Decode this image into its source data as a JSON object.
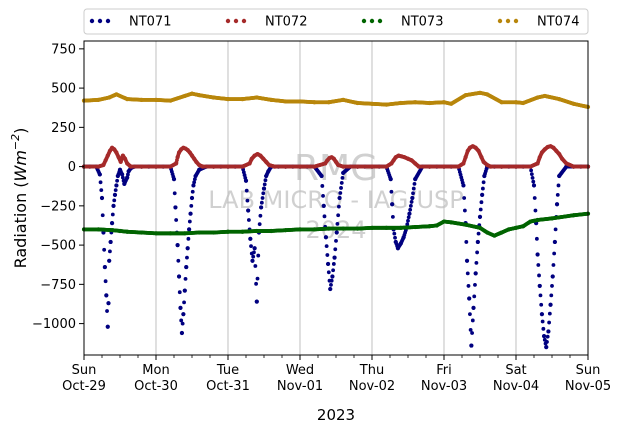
{
  "chart_data": {
    "type": "scatter",
    "title": "",
    "xlabel": "2023",
    "ylabel_prefix": "Radiation (",
    "ylabel_unit_main": "Wm",
    "ylabel_unit_exp": "−2",
    "ylabel_suffix": ")",
    "xlim": [
      0,
      7
    ],
    "ylim": [
      -1200,
      800
    ],
    "grid": "vertical",
    "legend_placement": "top",
    "yticks": [
      {
        "value": 750,
        "label": "750"
      },
      {
        "value": 500,
        "label": "500"
      },
      {
        "value": 250,
        "label": "250"
      },
      {
        "value": 0,
        "label": "0"
      },
      {
        "value": -250,
        "label": "−250"
      },
      {
        "value": -500,
        "label": "−500"
      },
      {
        "value": -750,
        "label": "−750"
      },
      {
        "value": -1000,
        "label": "−1000"
      }
    ],
    "xticks": [
      {
        "value": 0,
        "day": "Sun",
        "date": "Oct-29"
      },
      {
        "value": 1,
        "day": "Mon",
        "date": "Oct-30"
      },
      {
        "value": 2,
        "day": "Tue",
        "date": "Oct-31"
      },
      {
        "value": 3,
        "day": "Wed",
        "date": "Nov-01"
      },
      {
        "value": 4,
        "day": "Thu",
        "date": "Nov-02"
      },
      {
        "value": 5,
        "day": "Fri",
        "date": "Nov-03"
      },
      {
        "value": 6,
        "day": "Sat",
        "date": "Nov-04"
      },
      {
        "value": 7,
        "day": "Sun",
        "date": "Nov-05"
      }
    ],
    "watermark": [
      "RMG",
      "LAB MICRO - IAG/USP",
      "2024"
    ],
    "series": [
      {
        "name": "NT071",
        "color": "#000080",
        "x": [
          0.0,
          0.08,
          0.17,
          0.22,
          0.25,
          0.27,
          0.29,
          0.31,
          0.33,
          0.34,
          0.35,
          0.37,
          0.39,
          0.41,
          0.43,
          0.45,
          0.47,
          0.5,
          0.53,
          0.56,
          0.6,
          0.62,
          0.65,
          0.7,
          0.8,
          0.9,
          1.0,
          1.1,
          1.2,
          1.25,
          1.27,
          1.3,
          1.32,
          1.34,
          1.36,
          1.38,
          1.4,
          1.42,
          1.44,
          1.46,
          1.48,
          1.5,
          1.52,
          1.55,
          1.6,
          1.7,
          1.8,
          1.9,
          2.0,
          2.1,
          2.2,
          2.25,
          2.28,
          2.31,
          2.34,
          2.37,
          2.4,
          2.43,
          2.46,
          2.5,
          2.53,
          2.56,
          2.6,
          2.7,
          2.8,
          2.9,
          3.0,
          3.1,
          3.2,
          3.3,
          3.33,
          3.36,
          3.39,
          3.42,
          3.45,
          3.48,
          3.51,
          3.55,
          3.6,
          3.7,
          3.8,
          3.9,
          4.0,
          4.1,
          4.2,
          4.26,
          4.28,
          4.3,
          4.33,
          4.36,
          4.4,
          4.44,
          4.48,
          4.52,
          4.56,
          4.6,
          4.7,
          4.8,
          4.9,
          5.0,
          5.1,
          5.2,
          5.27,
          5.3,
          5.32,
          5.35,
          5.38,
          5.41,
          5.44,
          5.47,
          5.5,
          5.53,
          5.56,
          5.6,
          5.7,
          5.8,
          5.9,
          6.0,
          6.1,
          6.2,
          6.25,
          6.28,
          6.3,
          6.33,
          6.36,
          6.39,
          6.42,
          6.45,
          6.48,
          6.51,
          6.54,
          6.57,
          6.6,
          6.7,
          6.8,
          6.9,
          7.0
        ],
        "y": [
          0,
          0,
          0,
          -50,
          -200,
          -420,
          -640,
          -820,
          -1020,
          -870,
          -600,
          -480,
          -360,
          -250,
          -180,
          -120,
          -60,
          -20,
          -50,
          -110,
          -70,
          -30,
          -10,
          0,
          0,
          0,
          0,
          0,
          0,
          -80,
          -260,
          -500,
          -700,
          -900,
          -1060,
          -940,
          -790,
          -640,
          -520,
          -400,
          -300,
          -200,
          -120,
          -60,
          -20,
          0,
          0,
          0,
          0,
          0,
          0,
          -90,
          -280,
          -460,
          -600,
          -520,
          -860,
          -420,
          -260,
          -140,
          -60,
          -30,
          0,
          0,
          0,
          0,
          0,
          0,
          0,
          -60,
          -250,
          -450,
          -620,
          -780,
          -700,
          -580,
          -420,
          -200,
          -40,
          0,
          0,
          0,
          0,
          0,
          0,
          -80,
          -240,
          -400,
          -480,
          -520,
          -490,
          -450,
          -390,
          -300,
          -200,
          -80,
          0,
          0,
          0,
          0,
          0,
          0,
          -120,
          -360,
          -600,
          -840,
          -1140,
          -900,
          -680,
          -480,
          -320,
          -180,
          -60,
          0,
          0,
          0,
          0,
          0,
          0,
          0,
          -120,
          -360,
          -560,
          -760,
          -940,
          -1080,
          -1150,
          -1050,
          -880,
          -700,
          -480,
          -240,
          -60,
          0,
          0,
          0,
          0
        ]
      },
      {
        "name": "NT072",
        "color": "#a52a2a",
        "x": [
          0.0,
          0.2,
          0.27,
          0.3,
          0.33,
          0.36,
          0.39,
          0.42,
          0.45,
          0.48,
          0.51,
          0.54,
          0.57,
          0.6,
          0.65,
          0.8,
          1.0,
          1.2,
          1.28,
          1.3,
          1.32,
          1.35,
          1.38,
          1.41,
          1.44,
          1.47,
          1.5,
          1.53,
          1.56,
          1.6,
          1.65,
          1.8,
          2.0,
          2.2,
          2.3,
          2.33,
          2.37,
          2.41,
          2.45,
          2.49,
          2.53,
          2.57,
          2.65,
          2.8,
          3.0,
          3.2,
          3.35,
          3.38,
          3.41,
          3.44,
          3.47,
          3.5,
          3.53,
          3.6,
          3.8,
          4.0,
          4.2,
          4.27,
          4.3,
          4.33,
          4.37,
          4.41,
          4.45,
          4.5,
          4.55,
          4.6,
          4.65,
          4.8,
          5.0,
          5.2,
          5.27,
          5.3,
          5.33,
          5.36,
          5.4,
          5.44,
          5.48,
          5.52,
          5.55,
          5.6,
          5.65,
          5.8,
          6.0,
          6.2,
          6.3,
          6.33,
          6.36,
          6.4,
          6.44,
          6.48,
          6.52,
          6.56,
          6.6,
          6.64,
          6.7,
          6.8,
          7.0
        ],
        "y": [
          0,
          0,
          10,
          40,
          70,
          100,
          120,
          110,
          90,
          60,
          30,
          70,
          50,
          20,
          0,
          0,
          0,
          0,
          20,
          60,
          90,
          110,
          120,
          115,
          105,
          90,
          70,
          50,
          30,
          10,
          0,
          0,
          0,
          0,
          20,
          50,
          70,
          80,
          70,
          50,
          30,
          10,
          0,
          0,
          0,
          0,
          20,
          40,
          55,
          60,
          50,
          30,
          10,
          0,
          0,
          0,
          0,
          20,
          40,
          60,
          70,
          65,
          60,
          50,
          40,
          20,
          0,
          0,
          0,
          0,
          20,
          60,
          100,
          120,
          130,
          120,
          100,
          60,
          30,
          10,
          0,
          0,
          0,
          0,
          20,
          60,
          90,
          110,
          125,
          130,
          120,
          100,
          80,
          50,
          20,
          0,
          0
        ]
      },
      {
        "name": "NT073",
        "color": "#006400",
        "x": [
          0.0,
          0.2,
          0.4,
          0.5,
          0.6,
          0.8,
          1.0,
          1.2,
          1.4,
          1.6,
          1.8,
          2.0,
          2.2,
          2.4,
          2.6,
          2.8,
          3.0,
          3.2,
          3.4,
          3.6,
          3.8,
          4.0,
          4.2,
          4.4,
          4.6,
          4.8,
          4.9,
          5.0,
          5.1,
          5.3,
          5.5,
          5.6,
          5.7,
          5.8,
          5.9,
          6.0,
          6.1,
          6.2,
          6.3,
          6.5,
          6.8,
          7.0
        ],
        "y": [
          -400,
          -400,
          -405,
          -410,
          -415,
          -420,
          -425,
          -425,
          -425,
          -420,
          -420,
          -415,
          -415,
          -410,
          -410,
          -405,
          -400,
          -400,
          -395,
          -395,
          -395,
          -390,
          -390,
          -390,
          -385,
          -380,
          -375,
          -350,
          -355,
          -370,
          -390,
          -420,
          -440,
          -420,
          -400,
          -390,
          -380,
          -350,
          -340,
          -330,
          -310,
          -300
        ]
      },
      {
        "name": "NT074",
        "color": "#b8860b",
        "x": [
          0.0,
          0.2,
          0.35,
          0.45,
          0.6,
          0.8,
          1.0,
          1.2,
          1.4,
          1.5,
          1.6,
          1.8,
          2.0,
          2.2,
          2.4,
          2.6,
          2.8,
          3.0,
          3.2,
          3.4,
          3.6,
          3.8,
          4.0,
          4.2,
          4.4,
          4.6,
          4.8,
          5.0,
          5.1,
          5.3,
          5.5,
          5.6,
          5.8,
          6.0,
          6.1,
          6.3,
          6.4,
          6.6,
          6.8,
          7.0
        ],
        "y": [
          420,
          425,
          440,
          460,
          430,
          425,
          425,
          420,
          450,
          465,
          455,
          440,
          430,
          430,
          440,
          425,
          415,
          415,
          410,
          410,
          425,
          405,
          400,
          395,
          405,
          410,
          405,
          410,
          400,
          455,
          470,
          460,
          410,
          410,
          405,
          440,
          450,
          430,
          400,
          380
        ]
      }
    ]
  }
}
